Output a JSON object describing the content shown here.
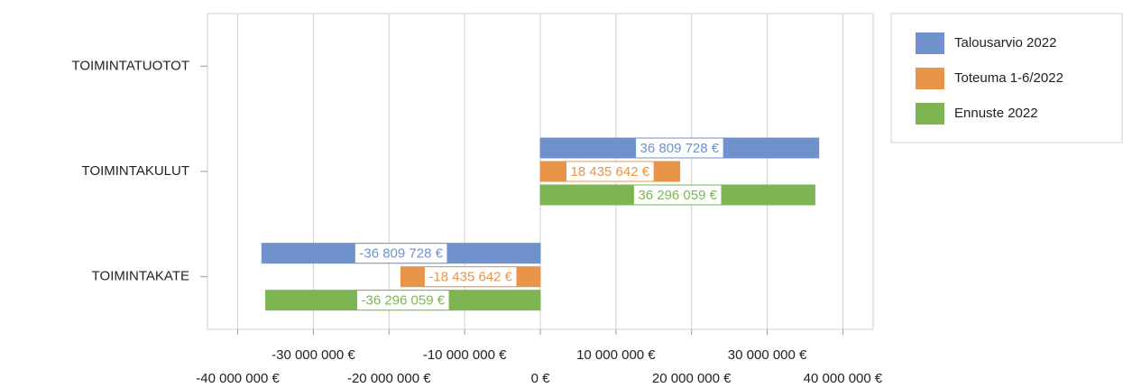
{
  "chart_data": {
    "type": "bar",
    "orientation": "horizontal",
    "categories": [
      "TOIMINTATUOTOT",
      "TOIMINTAKULUT",
      "TOIMINTAKATE"
    ],
    "series": [
      {
        "name": "Talousarvio 2022",
        "color": "#7092cc",
        "values": [
          0,
          36809728,
          -36809728
        ],
        "value_labels": [
          null,
          "36 809 728 €",
          "-36 809 728 €"
        ]
      },
      {
        "name": "Toteuma 1-6/2022",
        "color": "#e8954a",
        "values": [
          0,
          18435642,
          -18435642
        ],
        "value_labels": [
          null,
          "18 435 642 €",
          "-18 435 642 €"
        ]
      },
      {
        "name": "Ennuste 2022",
        "color": "#7cb552",
        "values": [
          0,
          36296059,
          -36296059
        ],
        "value_labels": [
          null,
          "36 296 059 €",
          "-36 296 059 €"
        ]
      }
    ],
    "xlim": [
      -44000000,
      44000000
    ],
    "xticks": [
      {
        "value": -40000000,
        "label": "-40 000 000 €"
      },
      {
        "value": -30000000,
        "label": "-30 000 000 €"
      },
      {
        "value": -20000000,
        "label": "-20 000 000 €"
      },
      {
        "value": -10000000,
        "label": "-10 000 000 €"
      },
      {
        "value": 0,
        "label": "0 €"
      },
      {
        "value": 10000000,
        "label": "10 000 000 €"
      },
      {
        "value": 20000000,
        "label": "20 000 000 €"
      },
      {
        "value": 30000000,
        "label": "30 000 000 €"
      },
      {
        "value": 40000000,
        "label": "40 000 000 €"
      }
    ],
    "grid": true,
    "legend": "right"
  }
}
